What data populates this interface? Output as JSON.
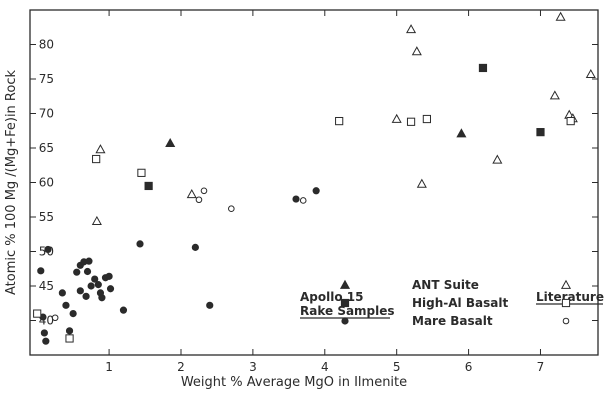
{
  "chart_data": {
    "type": "scatter",
    "xlabel": "Weight % Average MgO in Ilmenite",
    "ylabel": "Atomic % 100 Mg /(Mg+Fe)in Rock",
    "xlim": [
      -0.1,
      7.8
    ],
    "ylim": [
      35,
      85
    ],
    "x_ticks": [
      "1",
      "2",
      "3",
      "4",
      "5",
      "6",
      "7"
    ],
    "x_tick_values": [
      1,
      2,
      3,
      4,
      5,
      6,
      7
    ],
    "y_ticks": [
      "40",
      "45",
      "50",
      "55",
      "60",
      "65",
      "70",
      "75",
      "80"
    ],
    "y_tick_values": [
      40,
      45,
      50,
      55,
      60,
      65,
      70,
      75,
      80
    ],
    "grid": false,
    "legend": {
      "header_left_line1": "Apollo 15",
      "header_left_line2": "Rake Samples",
      "header_right": "Literature",
      "entries": [
        "ANT Suite",
        "High-Al Basalt",
        "Mare Basalt"
      ]
    },
    "series": [
      {
        "name": "ANT Suite",
        "source": "Apollo 15 Rake Samples",
        "marker": "triangle",
        "filled": true,
        "points": [
          [
            1.85,
            65.7
          ],
          [
            5.9,
            67.1
          ]
        ]
      },
      {
        "name": "High-Al Basalt",
        "source": "Apollo 15 Rake Samples",
        "marker": "square",
        "filled": true,
        "points": [
          [
            1.55,
            59.5
          ],
          [
            6.2,
            76.6
          ],
          [
            7.0,
            67.3
          ]
        ]
      },
      {
        "name": "Mare Basalt",
        "source": "Apollo 15 Rake Samples",
        "marker": "circle",
        "filled": true,
        "points": [
          [
            0.05,
            47.2
          ],
          [
            0.15,
            50.3
          ],
          [
            0.08,
            40.5
          ],
          [
            0.1,
            38.2
          ],
          [
            0.12,
            37.0
          ],
          [
            0.35,
            44.0
          ],
          [
            0.4,
            42.2
          ],
          [
            0.45,
            38.5
          ],
          [
            0.5,
            41.0
          ],
          [
            0.6,
            48.0
          ],
          [
            0.65,
            48.5
          ],
          [
            0.72,
            48.6
          ],
          [
            0.55,
            47.0
          ],
          [
            0.7,
            47.1
          ],
          [
            0.75,
            45.0
          ],
          [
            0.6,
            44.3
          ],
          [
            0.68,
            43.5
          ],
          [
            0.8,
            46.0
          ],
          [
            0.85,
            45.2
          ],
          [
            0.88,
            44.0
          ],
          [
            0.9,
            43.3
          ],
          [
            0.95,
            46.2
          ],
          [
            1.0,
            46.4
          ],
          [
            1.02,
            44.6
          ],
          [
            1.2,
            41.5
          ],
          [
            1.43,
            51.1
          ],
          [
            2.2,
            50.6
          ],
          [
            2.4,
            42.2
          ],
          [
            3.6,
            57.6
          ],
          [
            3.88,
            58.8
          ]
        ]
      },
      {
        "name": "ANT Suite",
        "source": "Literature",
        "marker": "triangle",
        "filled": false,
        "points": [
          [
            0.88,
            64.8
          ],
          [
            0.83,
            54.4
          ],
          [
            2.15,
            58.3
          ],
          [
            5.2,
            82.2
          ],
          [
            5.28,
            79.0
          ],
          [
            5.0,
            69.2
          ],
          [
            5.35,
            59.8
          ],
          [
            6.4,
            63.3
          ],
          [
            7.2,
            72.6
          ],
          [
            7.28,
            84.0
          ],
          [
            7.4,
            69.8
          ],
          [
            7.45,
            69.3
          ],
          [
            7.7,
            75.7
          ]
        ]
      },
      {
        "name": "High-Al Basalt",
        "source": "Literature",
        "marker": "square",
        "filled": false,
        "points": [
          [
            0.82,
            63.4
          ],
          [
            1.45,
            61.4
          ],
          [
            4.2,
            68.9
          ],
          [
            5.2,
            68.8
          ],
          [
            5.42,
            69.2
          ],
          [
            7.42,
            68.9
          ],
          [
            0.0,
            41.0
          ],
          [
            0.45,
            37.4
          ]
        ]
      },
      {
        "name": "Mare Basalt",
        "source": "Literature",
        "marker": "circle",
        "filled": false,
        "points": [
          [
            0.25,
            40.4
          ],
          [
            2.25,
            57.5
          ],
          [
            2.32,
            58.8
          ],
          [
            2.7,
            56.2
          ],
          [
            3.7,
            57.4
          ]
        ]
      }
    ]
  }
}
